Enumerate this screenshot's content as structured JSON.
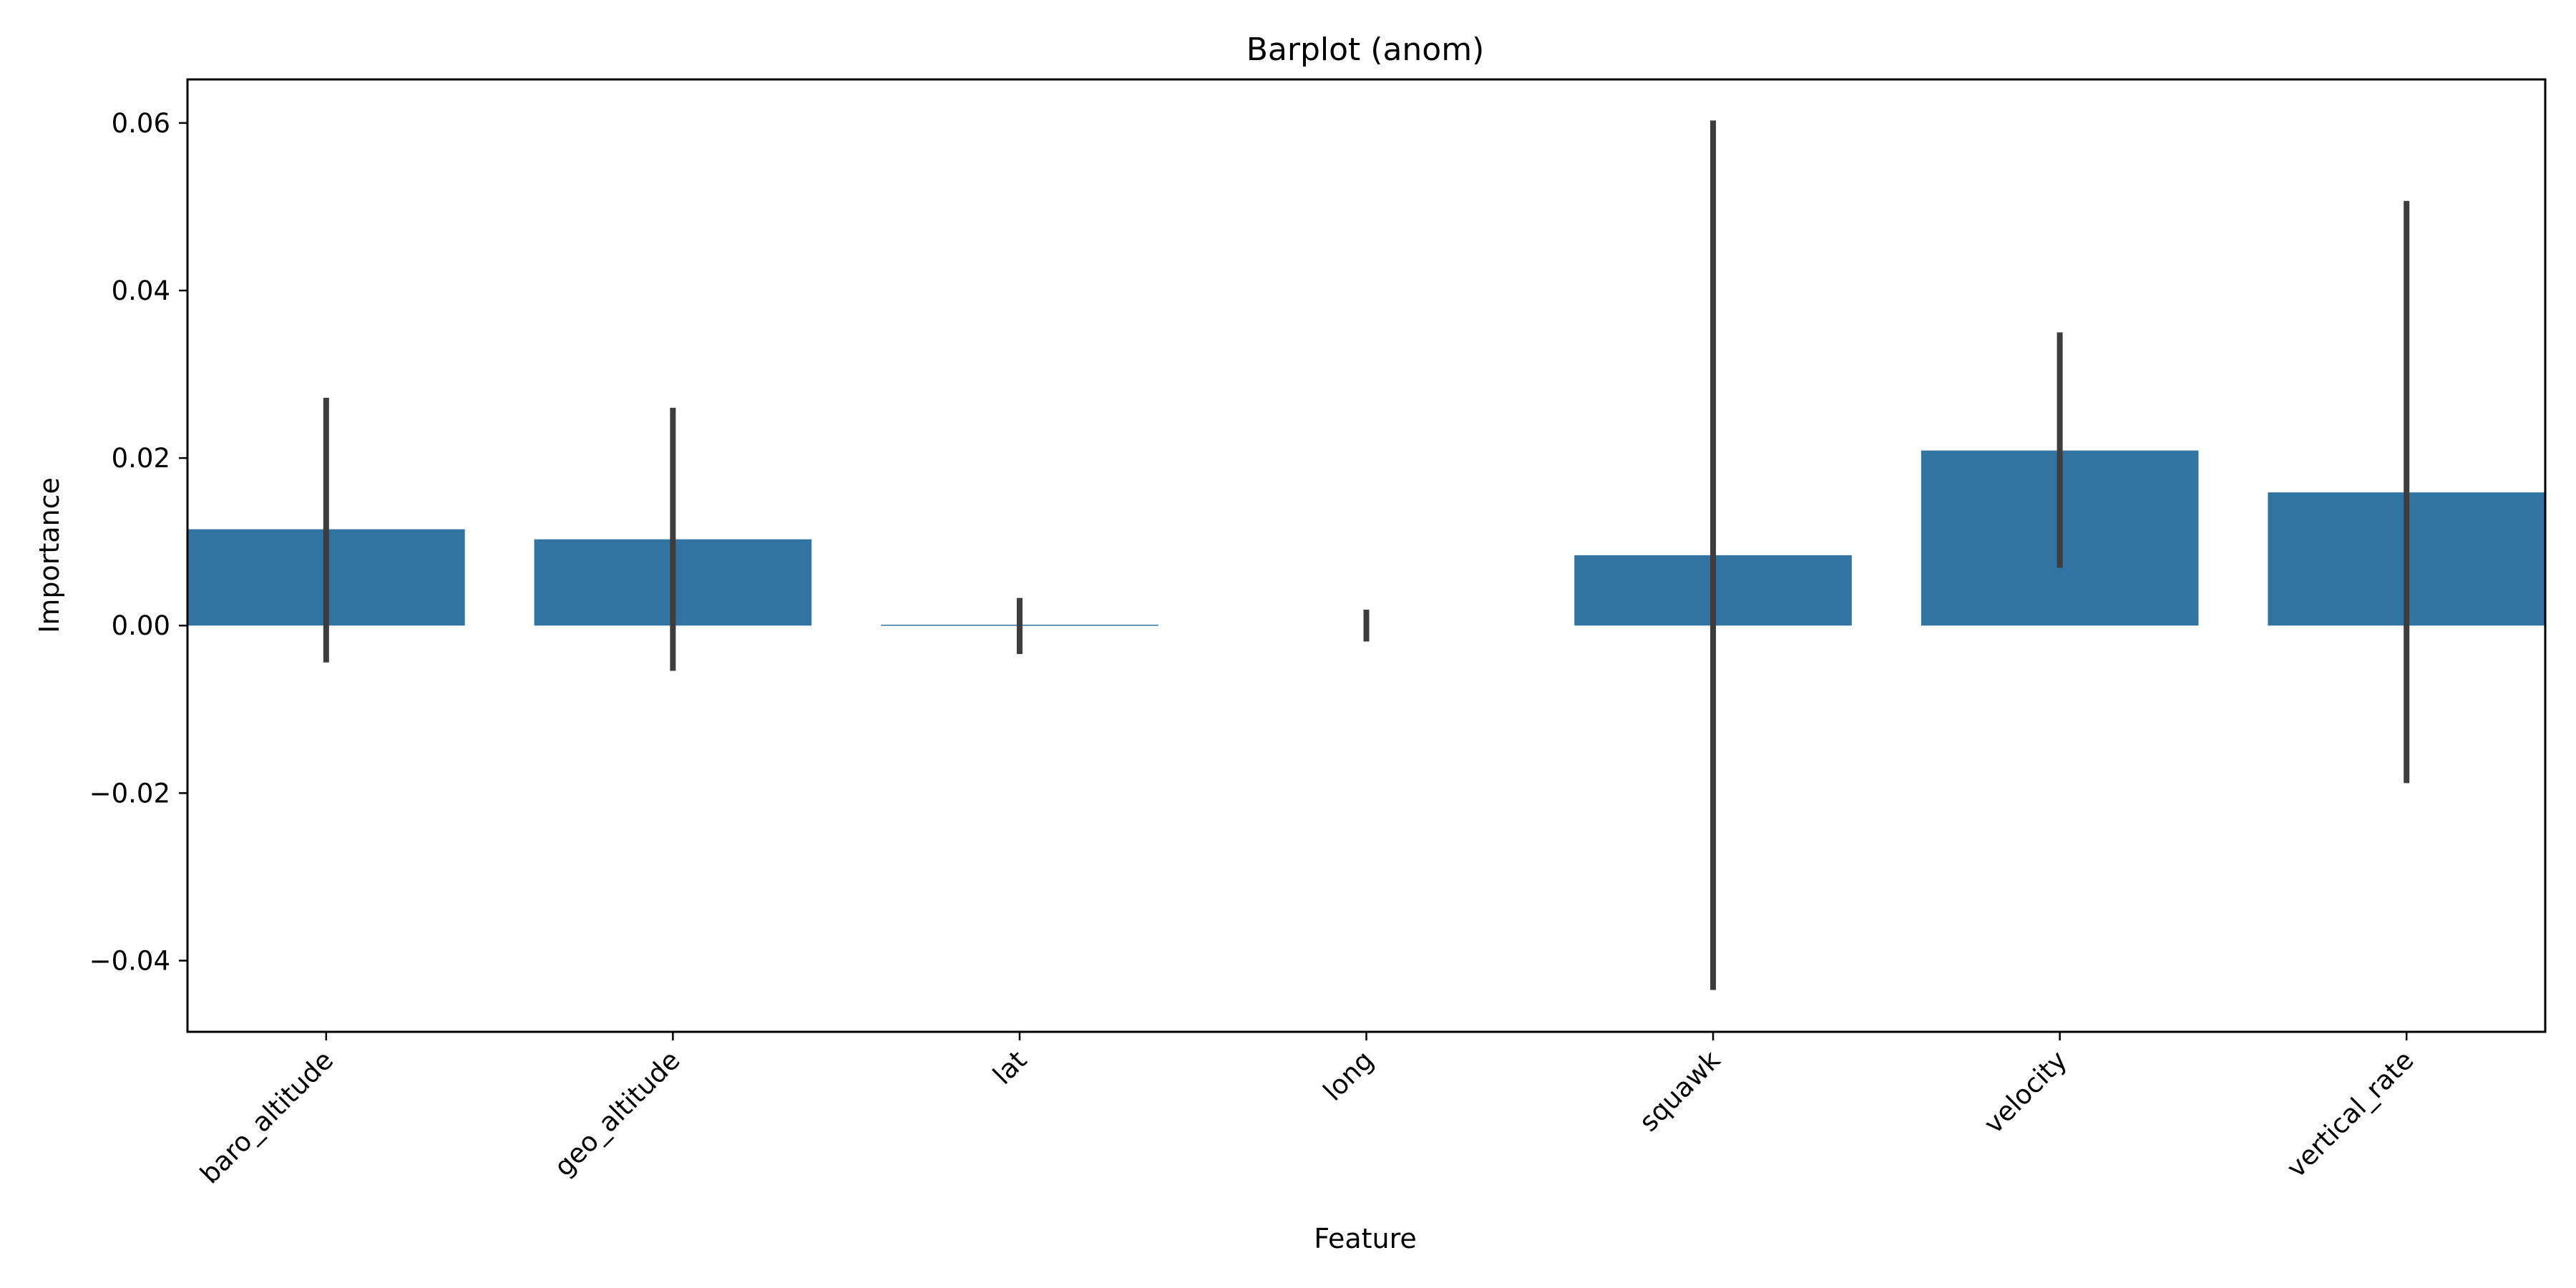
{
  "chart_data": {
    "type": "bar",
    "title": "Barplot (anom)",
    "xlabel": "Feature",
    "ylabel": "Importance",
    "categories": [
      "baro_altitude",
      "geo_altitude",
      "lat",
      "long",
      "squawk",
      "velocity",
      "vertical_rate"
    ],
    "values": [
      0.0115,
      0.0103,
      0.0001,
      0.0,
      0.0084,
      0.0209,
      0.0159
    ],
    "error_low": [
      -0.0044,
      -0.0054,
      -0.0034,
      -0.0019,
      -0.0435,
      0.0069,
      -0.0188
    ],
    "error_high": [
      0.0272,
      0.026,
      0.0033,
      0.0019,
      0.0603,
      0.035,
      0.0507
    ],
    "ylim": [
      -0.0485,
      0.0652
    ],
    "yticks": [
      -0.04,
      -0.02,
      0.0,
      0.02,
      0.04,
      0.06
    ],
    "ytick_labels": [
      "−0.04",
      "−0.02",
      "0.00",
      "0.02",
      "0.04",
      "0.06"
    ],
    "bar_color": "#3274a1",
    "errorbar_color": "#3d3d3d",
    "grid": false,
    "legend": "none"
  }
}
